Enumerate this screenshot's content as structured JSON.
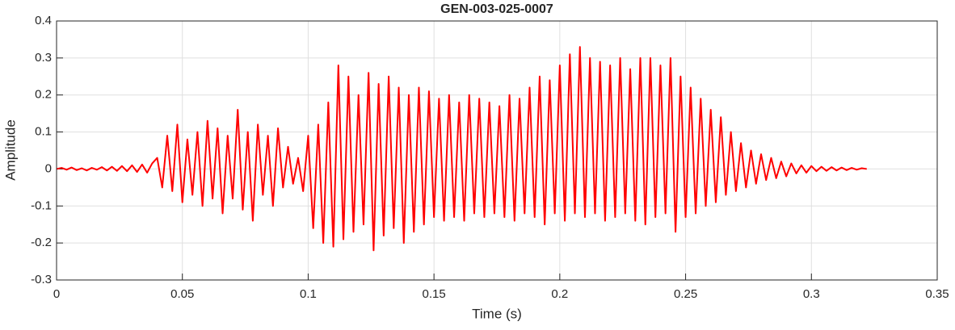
{
  "chart_data": {
    "type": "line",
    "title": "GEN-003-025-0007",
    "x_label": "Time (s)",
    "y_label": "Amplitude",
    "color": "#ff0000",
    "grid": true,
    "xlim": [
      0,
      0.35
    ],
    "xticks": [
      0,
      0.05,
      0.1,
      0.15,
      0.2,
      0.25,
      0.3,
      0.35
    ],
    "ylim": [
      -0.3,
      0.4
    ],
    "yticks": [
      -0.3,
      -0.2,
      -0.1,
      0,
      0.1,
      0.2,
      0.3,
      0.4
    ],
    "x": [
      0,
      0.002,
      0.004,
      0.006,
      0.008,
      0.01,
      0.012,
      0.014,
      0.016,
      0.018,
      0.02,
      0.022,
      0.024,
      0.026,
      0.028,
      0.03,
      0.032,
      0.034,
      0.036,
      0.038,
      0.04,
      0.042,
      0.044,
      0.046,
      0.048,
      0.05,
      0.052,
      0.054,
      0.056,
      0.058,
      0.06,
      0.062,
      0.064,
      0.066,
      0.068,
      0.07,
      0.072,
      0.074,
      0.076,
      0.078,
      0.08,
      0.082,
      0.084,
      0.086,
      0.088,
      0.09,
      0.092,
      0.094,
      0.096,
      0.098,
      0.1,
      0.102,
      0.104,
      0.106,
      0.108,
      0.11,
      0.112,
      0.114,
      0.116,
      0.118,
      0.12,
      0.122,
      0.124,
      0.126,
      0.128,
      0.13,
      0.132,
      0.134,
      0.136,
      0.138,
      0.14,
      0.142,
      0.144,
      0.146,
      0.148,
      0.15,
      0.152,
      0.154,
      0.156,
      0.158,
      0.16,
      0.162,
      0.164,
      0.166,
      0.168,
      0.17,
      0.172,
      0.174,
      0.176,
      0.178,
      0.18,
      0.182,
      0.184,
      0.186,
      0.188,
      0.19,
      0.192,
      0.194,
      0.196,
      0.198,
      0.2,
      0.202,
      0.204,
      0.206,
      0.208,
      0.21,
      0.212,
      0.214,
      0.216,
      0.218,
      0.22,
      0.222,
      0.224,
      0.226,
      0.228,
      0.23,
      0.232,
      0.234,
      0.236,
      0.238,
      0.24,
      0.242,
      0.244,
      0.246,
      0.248,
      0.25,
      0.252,
      0.254,
      0.256,
      0.258,
      0.26,
      0.262,
      0.264,
      0.266,
      0.268,
      0.27,
      0.272,
      0.274,
      0.276,
      0.278,
      0.28,
      0.282,
      0.284,
      0.286,
      0.288,
      0.29,
      0.292,
      0.294,
      0.296,
      0.298,
      0.3,
      0.302,
      0.304,
      0.306,
      0.308,
      0.31,
      0.312,
      0.314,
      0.316,
      0.318,
      0.32,
      0.322
    ],
    "values": [
      0,
      0.003,
      -0.002,
      0.004,
      -0.003,
      0.002,
      -0.004,
      0.003,
      -0.002,
      0.005,
      -0.004,
      0.006,
      -0.005,
      0.008,
      -0.006,
      0.01,
      -0.008,
      0.012,
      -0.01,
      0.015,
      0.03,
      -0.05,
      0.09,
      -0.06,
      0.12,
      -0.09,
      0.08,
      -0.07,
      0.1,
      -0.1,
      0.13,
      -0.08,
      0.11,
      -0.12,
      0.09,
      -0.08,
      0.16,
      -0.11,
      0.1,
      -0.14,
      0.12,
      -0.07,
      0.09,
      -0.1,
      0.11,
      -0.05,
      0.06,
      -0.04,
      0.03,
      -0.06,
      0.09,
      -0.16,
      0.12,
      -0.2,
      0.18,
      -0.21,
      0.28,
      -0.19,
      0.25,
      -0.17,
      0.2,
      -0.15,
      0.26,
      -0.22,
      0.23,
      -0.18,
      0.25,
      -0.16,
      0.22,
      -0.2,
      0.2,
      -0.17,
      0.22,
      -0.15,
      0.21,
      -0.13,
      0.19,
      -0.14,
      0.2,
      -0.13,
      0.18,
      -0.14,
      0.2,
      -0.12,
      0.19,
      -0.13,
      0.18,
      -0.12,
      0.17,
      -0.13,
      0.2,
      -0.14,
      0.19,
      -0.12,
      0.22,
      -0.13,
      0.25,
      -0.15,
      0.24,
      -0.12,
      0.28,
      -0.14,
      0.31,
      -0.12,
      0.33,
      -0.13,
      0.3,
      -0.12,
      0.29,
      -0.14,
      0.28,
      -0.13,
      0.3,
      -0.12,
      0.27,
      -0.14,
      0.3,
      -0.15,
      0.3,
      -0.13,
      0.28,
      -0.12,
      0.3,
      -0.17,
      0.25,
      -0.13,
      0.22,
      -0.12,
      0.19,
      -0.1,
      0.16,
      -0.09,
      0.14,
      -0.07,
      0.1,
      -0.06,
      0.07,
      -0.05,
      0.05,
      -0.04,
      0.04,
      -0.03,
      0.03,
      -0.025,
      0.02,
      -0.02,
      0.015,
      -0.012,
      0.01,
      -0.01,
      0.008,
      -0.006,
      0.006,
      -0.005,
      0.005,
      -0.004,
      0.004,
      -0.003,
      0.003,
      -0.002,
      0.002,
      0
    ]
  }
}
